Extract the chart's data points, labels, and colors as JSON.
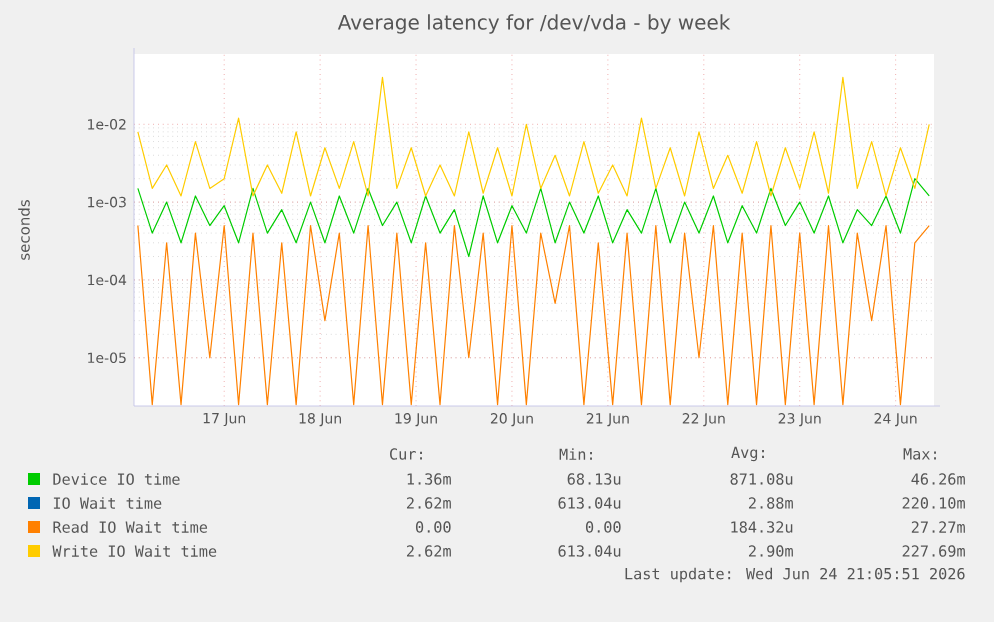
{
  "chart_data": {
    "type": "line",
    "title": "Average latency for /dev/vda - by week",
    "ylabel": "seconds",
    "log": "y",
    "grid": true,
    "legend": "bottom",
    "xlim": [
      "2026-06-16T01:26",
      "2026-06-24T09:36"
    ],
    "ylim": [
      2.4e-06,
      0.08
    ],
    "xticks": [
      {
        "value": "2026-06-17",
        "label": "17 Jun"
      },
      {
        "value": "2026-06-18",
        "label": "18 Jun"
      },
      {
        "value": "2026-06-19",
        "label": "19 Jun"
      },
      {
        "value": "2026-06-20",
        "label": "20 Jun"
      },
      {
        "value": "2026-06-21",
        "label": "21 Jun"
      },
      {
        "value": "2026-06-22",
        "label": "22 Jun"
      },
      {
        "value": "2026-06-23",
        "label": "23 Jun"
      },
      {
        "value": "2026-06-24",
        "label": "24 Jun"
      }
    ],
    "yticks": [
      {
        "value": 1e-05,
        "label": "1e-05"
      },
      {
        "value": 0.0001,
        "label": "1e-04"
      },
      {
        "value": 0.001,
        "label": "1e-03"
      },
      {
        "value": 0.01,
        "label": "1e-02"
      }
    ],
    "x": [
      "2026-06-16T02:24",
      "2026-06-16T06:00",
      "2026-06-16T09:36",
      "2026-06-16T13:12",
      "2026-06-16T16:48",
      "2026-06-16T20:24",
      "2026-06-17T00:00",
      "2026-06-17T03:36",
      "2026-06-17T07:12",
      "2026-06-17T10:48",
      "2026-06-17T14:24",
      "2026-06-17T18:00",
      "2026-06-17T21:36",
      "2026-06-18T01:12",
      "2026-06-18T04:48",
      "2026-06-18T08:24",
      "2026-06-18T12:00",
      "2026-06-18T15:36",
      "2026-06-18T19:12",
      "2026-06-18T22:48",
      "2026-06-19T02:24",
      "2026-06-19T06:00",
      "2026-06-19T09:36",
      "2026-06-19T13:12",
      "2026-06-19T16:48",
      "2026-06-19T20:24",
      "2026-06-20T00:00",
      "2026-06-20T03:36",
      "2026-06-20T07:12",
      "2026-06-20T10:48",
      "2026-06-20T14:24",
      "2026-06-20T18:00",
      "2026-06-20T21:36",
      "2026-06-21T01:12",
      "2026-06-21T04:48",
      "2026-06-21T08:24",
      "2026-06-21T12:00",
      "2026-06-21T15:36",
      "2026-06-21T19:12",
      "2026-06-21T22:48",
      "2026-06-22T02:24",
      "2026-06-22T06:00",
      "2026-06-22T09:36",
      "2026-06-22T13:12",
      "2026-06-22T16:48",
      "2026-06-22T20:24",
      "2026-06-23T00:00",
      "2026-06-23T03:36",
      "2026-06-23T07:12",
      "2026-06-23T10:48",
      "2026-06-23T14:24",
      "2026-06-23T18:00",
      "2026-06-23T21:36",
      "2026-06-24T01:12",
      "2026-06-24T04:48",
      "2026-06-24T08:24"
    ],
    "series": [
      {
        "name": "Device IO time",
        "color": "#00cc00",
        "values": [
          0.0015,
          0.0004,
          0.001,
          0.0003,
          0.0012,
          0.0005,
          0.0009,
          0.0003,
          0.0015,
          0.0004,
          0.0008,
          0.0003,
          0.001,
          0.0003,
          0.0012,
          0.0004,
          0.0015,
          0.0005,
          0.001,
          0.0003,
          0.0012,
          0.0004,
          0.0008,
          0.0002,
          0.0012,
          0.0003,
          0.0009,
          0.0004,
          0.0015,
          0.0003,
          0.001,
          0.0004,
          0.0012,
          0.0003,
          0.0008,
          0.0004,
          0.0015,
          0.0003,
          0.001,
          0.0004,
          0.0012,
          0.0003,
          0.0009,
          0.0004,
          0.0015,
          0.0005,
          0.001,
          0.0004,
          0.0012,
          0.0003,
          0.0008,
          0.0005,
          0.0012,
          0.0004,
          0.002,
          0.0012
        ]
      },
      {
        "name": "IO Wait time",
        "color": "#0066b3",
        "values": [
          null,
          null,
          null,
          null,
          null,
          null,
          null,
          null,
          null,
          null,
          null,
          null,
          null,
          null,
          null,
          null,
          null,
          null,
          null,
          null,
          null,
          null,
          null,
          null,
          null,
          null,
          null,
          null,
          null,
          null,
          null,
          null,
          null,
          null,
          null,
          null,
          null,
          null,
          null,
          null,
          null,
          null,
          null,
          null,
          null,
          null,
          null,
          null,
          null,
          null,
          null,
          null,
          null,
          null,
          null,
          null
        ]
      },
      {
        "name": "Read IO Wait time",
        "color": "#ff8000",
        "values": [
          0.0005,
          2.5e-06,
          0.0003,
          2.5e-06,
          0.0004,
          1e-05,
          0.0005,
          2.5e-06,
          0.0004,
          2.5e-06,
          0.0003,
          2.5e-06,
          0.0005,
          3e-05,
          0.0004,
          2.5e-06,
          0.0005,
          2.5e-06,
          0.0004,
          2.5e-06,
          0.0003,
          2.5e-06,
          0.0005,
          1e-05,
          0.0004,
          2.5e-06,
          0.0005,
          2.5e-06,
          0.0004,
          5e-05,
          0.0005,
          2.5e-06,
          0.0003,
          2.5e-06,
          0.0004,
          2.5e-06,
          0.0005,
          2.5e-06,
          0.0004,
          1e-05,
          0.0005,
          2.5e-06,
          0.0004,
          2.5e-06,
          0.0005,
          2.5e-06,
          0.0004,
          2.5e-06,
          0.0005,
          2.5e-06,
          0.0004,
          3e-05,
          0.0005,
          2.5e-06,
          0.0003,
          0.0005
        ]
      },
      {
        "name": "Write IO Wait time",
        "color": "#ffcc00",
        "values": [
          0.008,
          0.0015,
          0.003,
          0.0012,
          0.006,
          0.0015,
          0.002,
          0.012,
          0.0012,
          0.003,
          0.0013,
          0.008,
          0.0012,
          0.005,
          0.0015,
          0.006,
          0.0012,
          0.04,
          0.0015,
          0.005,
          0.0012,
          0.003,
          0.0012,
          0.008,
          0.0013,
          0.005,
          0.0012,
          0.01,
          0.0015,
          0.004,
          0.0012,
          0.006,
          0.0013,
          0.003,
          0.0012,
          0.012,
          0.0015,
          0.005,
          0.0012,
          0.008,
          0.0015,
          0.004,
          0.0013,
          0.006,
          0.0012,
          0.005,
          0.0015,
          0.008,
          0.0013,
          0.04,
          0.0015,
          0.006,
          0.0012,
          0.005,
          0.0015,
          0.01
        ]
      }
    ],
    "annotations": [
      "Cur:",
      "Min:",
      "Avg:",
      "Max:",
      "1.36m",
      "68.13u",
      "871.08u",
      "46.26m",
      "2.62m",
      "613.04u",
      "2.88m",
      "220.10m",
      "0.00",
      "0.00",
      "184.32u",
      "27.27m",
      "2.62m",
      "613.04u",
      "2.90m",
      "227.69m",
      "Last update: Wed Jun 24 21:05:51 2026"
    ]
  }
}
